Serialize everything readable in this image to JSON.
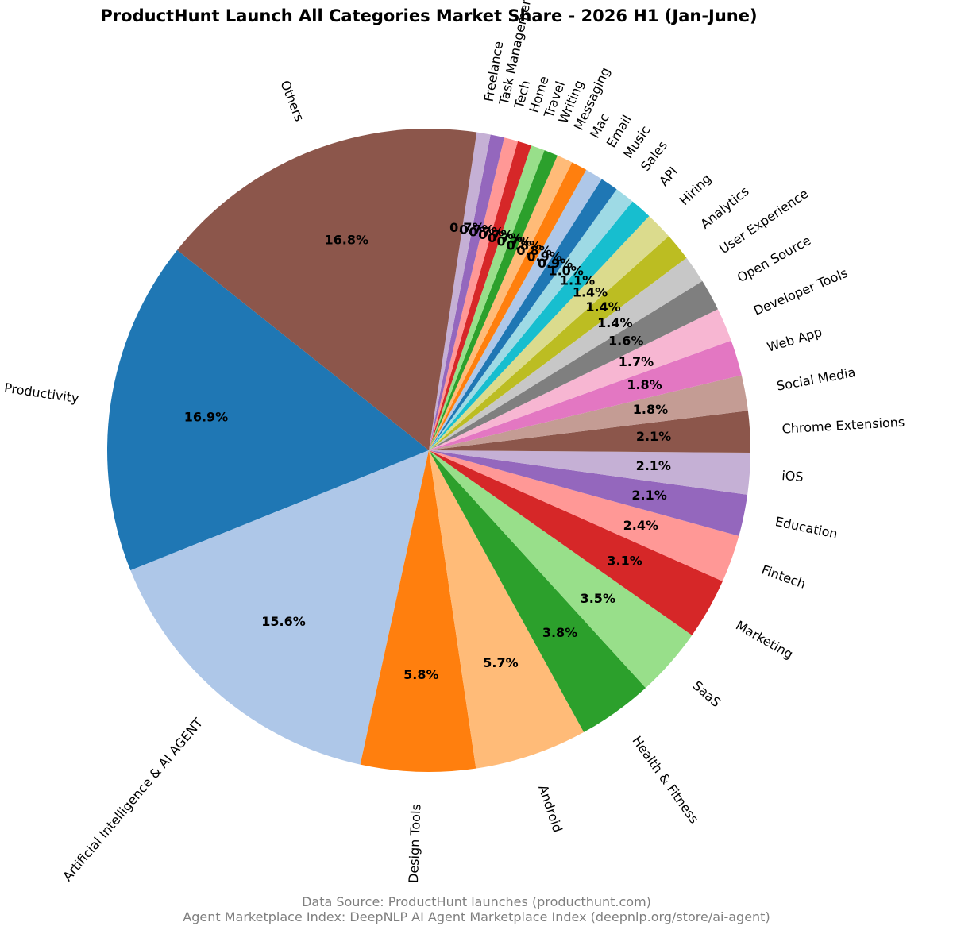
{
  "chart_data": {
    "type": "pie",
    "title": "ProductHunt Launch All Categories Market Share - 2026 H1 (Jan-June)",
    "slices": [
      {
        "label": "Productivity",
        "value": 16.9,
        "pct_label": "16.9%",
        "color": "#1f77b4"
      },
      {
        "label": "Artificial Intelligence & AI AGENT",
        "value": 15.6,
        "pct_label": "15.6%",
        "color": "#aec7e8"
      },
      {
        "label": "Design Tools",
        "value": 5.8,
        "pct_label": "5.8%",
        "color": "#ff7f0e"
      },
      {
        "label": "Android",
        "value": 5.7,
        "pct_label": "5.7%",
        "color": "#ffbb78"
      },
      {
        "label": "Health & Fitness",
        "value": 3.8,
        "pct_label": "3.8%",
        "color": "#2ca02c"
      },
      {
        "label": "SaaS",
        "value": 3.5,
        "pct_label": "3.5%",
        "color": "#98df8a"
      },
      {
        "label": "Marketing",
        "value": 3.1,
        "pct_label": "3.1%",
        "color": "#d62728"
      },
      {
        "label": "Fintech",
        "value": 2.4,
        "pct_label": "2.4%",
        "color": "#ff9896"
      },
      {
        "label": "Education",
        "value": 2.1,
        "pct_label": "2.1%",
        "color": "#9467bd"
      },
      {
        "label": "iOS",
        "value": 2.1,
        "pct_label": "2.1%",
        "color": "#c5b0d5"
      },
      {
        "label": "Chrome Extensions",
        "value": 2.1,
        "pct_label": "2.1%",
        "color": "#8c564b"
      },
      {
        "label": "Social Media",
        "value": 1.8,
        "pct_label": "1.8%",
        "color": "#c49c94"
      },
      {
        "label": "Web App",
        "value": 1.8,
        "pct_label": "1.8%",
        "color": "#e377c2"
      },
      {
        "label": "Developer Tools",
        "value": 1.7,
        "pct_label": "1.7%",
        "color": "#f7b6d2"
      },
      {
        "label": "Open Source",
        "value": 1.6,
        "pct_label": "1.6%",
        "color": "#7f7f7f"
      },
      {
        "label": "User Experience",
        "value": 1.4,
        "pct_label": "1.4%",
        "color": "#c7c7c7"
      },
      {
        "label": "Analytics",
        "value": 1.4,
        "pct_label": "1.4%",
        "color": "#bcbd22"
      },
      {
        "label": "Hiring",
        "value": 1.4,
        "pct_label": "1.4%",
        "color": "#dbdb8d"
      },
      {
        "label": "API",
        "value": 1.1,
        "pct_label": "1.1%",
        "color": "#17becf"
      },
      {
        "label": "Sales",
        "value": 1.0,
        "pct_label": "1.0%",
        "color": "#9edae5"
      },
      {
        "label": "Music",
        "value": 0.9,
        "pct_label": "0.9%",
        "color": "#1f77b4"
      },
      {
        "label": "Email",
        "value": 0.9,
        "pct_label": "0.9%",
        "color": "#aec7e8"
      },
      {
        "label": "Mac",
        "value": 0.8,
        "pct_label": "0.8%",
        "color": "#ff7f0e"
      },
      {
        "label": "Messaging",
        "value": 0.8,
        "pct_label": "0.8%",
        "color": "#ffbb78"
      },
      {
        "label": "Writing",
        "value": 0.7,
        "pct_label": "0.7%",
        "color": "#2ca02c"
      },
      {
        "label": "Travel",
        "value": 0.7,
        "pct_label": "0.7%",
        "color": "#98df8a"
      },
      {
        "label": "Home",
        "value": 0.7,
        "pct_label": "0.7%",
        "color": "#d62728"
      },
      {
        "label": "Tech",
        "value": 0.7,
        "pct_label": "0.7%",
        "color": "#ff9896"
      },
      {
        "label": "Task Management",
        "value": 0.7,
        "pct_label": "0.7%",
        "color": "#9467bd"
      },
      {
        "label": "Freelance",
        "value": 0.7,
        "pct_label": "0.7%",
        "color": "#c5b0d5"
      },
      {
        "label": "Others",
        "value": 16.8,
        "pct_label": "16.8%",
        "color": "#8c564b"
      }
    ],
    "start_angle_deg": 141.5,
    "direction": "counterclockwise",
    "rotate_labels": true
  },
  "footer": {
    "line1": "Data Source: ProductHunt launches (producthunt.com)",
    "line2": "Agent Marketplace Index: DeepNLP AI Agent Marketplace Index (deepnlp.org/store/ai-agent)"
  }
}
